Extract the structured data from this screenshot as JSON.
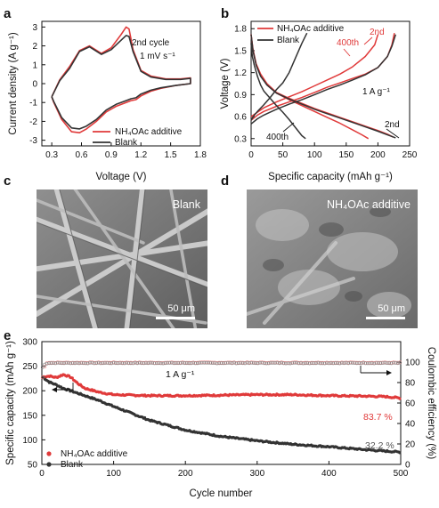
{
  "panels": {
    "a": {
      "label": "a",
      "chart_data": {
        "type": "line",
        "xlabel": "Voltage (V)",
        "ylabel": "Current density (A g⁻¹)",
        "xlim": [
          0.2,
          1.8
        ],
        "ylim": [
          -3.3,
          3.3
        ],
        "xticks": [
          0.3,
          0.6,
          0.9,
          1.2,
          1.5,
          1.8
        ],
        "yticks": [
          -3,
          -2,
          -1,
          0,
          1,
          2,
          3
        ],
        "annotation": [
          "2nd cycle",
          "1 mV s⁻¹"
        ],
        "legend": [
          "NH₄OAc additive",
          "Blank"
        ],
        "series": [
          {
            "name": "NH₄OAc additive",
            "color": "#e03a3a",
            "x": [
              0.3,
              0.38,
              0.48,
              0.58,
              0.68,
              0.8,
              0.9,
              1.0,
              1.05,
              1.08,
              1.12,
              1.2,
              1.3,
              1.45,
              1.6,
              1.7,
              1.7,
              1.55,
              1.4,
              1.3,
              1.2,
              1.15,
              1.1,
              1.05,
              0.95,
              0.85,
              0.75,
              0.65,
              0.58,
              0.5,
              0.4,
              0.32,
              0.3
            ],
            "y": [
              -0.7,
              0.2,
              0.9,
              1.75,
              2.0,
              1.6,
              1.9,
              2.6,
              3.0,
              2.9,
              1.8,
              0.7,
              0.4,
              0.25,
              0.25,
              0.3,
              0.0,
              -0.1,
              -0.25,
              -0.4,
              -0.65,
              -0.85,
              -0.9,
              -1.0,
              -1.2,
              -1.5,
              -2.0,
              -2.4,
              -2.6,
              -2.55,
              -1.9,
              -1.0,
              -0.7
            ]
          },
          {
            "name": "Blank",
            "color": "#333333",
            "x": [
              0.3,
              0.38,
              0.48,
              0.58,
              0.68,
              0.8,
              0.9,
              1.0,
              1.05,
              1.08,
              1.12,
              1.2,
              1.3,
              1.45,
              1.6,
              1.7,
              1.7,
              1.55,
              1.4,
              1.3,
              1.2,
              1.15,
              1.1,
              1.05,
              0.95,
              0.85,
              0.75,
              0.65,
              0.58,
              0.5,
              0.4,
              0.32,
              0.3
            ],
            "y": [
              -0.7,
              0.15,
              0.8,
              1.7,
              1.95,
              1.55,
              1.8,
              2.3,
              2.55,
              2.5,
              1.7,
              0.65,
              0.35,
              0.22,
              0.22,
              0.28,
              0.0,
              -0.1,
              -0.22,
              -0.35,
              -0.55,
              -0.75,
              -0.8,
              -0.9,
              -1.1,
              -1.4,
              -1.9,
              -2.25,
              -2.4,
              -2.35,
              -1.8,
              -0.95,
              -0.7
            ]
          }
        ]
      }
    },
    "b": {
      "label": "b",
      "chart_data": {
        "type": "line",
        "xlabel": "Specific capacity (mAh g⁻¹)",
        "ylabel": "Voltage (V)",
        "xlim": [
          0,
          250
        ],
        "ylim": [
          0.2,
          1.9
        ],
        "xticks": [
          0,
          50,
          100,
          150,
          200,
          250
        ],
        "yticks": [
          0.3,
          0.6,
          0.9,
          1.2,
          1.5,
          1.8
        ],
        "legend": [
          "NH₄OAc  additive",
          "Blank"
        ],
        "annotations": [
          "2nd",
          "400th",
          "1 A g⁻¹",
          "2nd",
          "400th"
        ],
        "series": [
          {
            "name": "NH₄OAc  additive",
            "color": "#e03a3a",
            "kind": "charge-2nd",
            "x": [
              0,
              10,
              20,
              40,
              60,
              80,
              100,
              120,
              140,
              160,
              180,
              200,
              215,
              222,
              226
            ],
            "y": [
              0.55,
              0.62,
              0.67,
              0.74,
              0.8,
              0.86,
              0.93,
              1.0,
              1.06,
              1.12,
              1.18,
              1.27,
              1.42,
              1.58,
              1.74
            ]
          },
          {
            "name": "NH₄OAc  additive",
            "color": "#e03a3a",
            "kind": "discharge-2nd",
            "x": [
              0,
              3,
              8,
              15,
              25,
              40,
              60,
              80,
              100,
              120,
              140,
              160,
              180,
              200,
              215,
              224
            ],
            "y": [
              1.72,
              1.52,
              1.32,
              1.18,
              1.05,
              0.93,
              0.85,
              0.78,
              0.71,
              0.65,
              0.59,
              0.53,
              0.47,
              0.41,
              0.36,
              0.32
            ]
          },
          {
            "name": "NH₄OAc  additive",
            "color": "#e03a3a",
            "kind": "charge-400th",
            "x": [
              0,
              10,
              20,
              40,
              60,
              80,
              100,
              120,
              140,
              160,
              180,
              195,
              200
            ],
            "y": [
              0.6,
              0.66,
              0.72,
              0.8,
              0.87,
              0.94,
              1.02,
              1.1,
              1.18,
              1.28,
              1.42,
              1.58,
              1.72
            ]
          },
          {
            "name": "NH₄OAc  additive",
            "color": "#e03a3a",
            "kind": "discharge-400th",
            "x": [
              0,
              3,
              8,
              15,
              25,
              40,
              60,
              80,
              100,
              120,
              140,
              160,
              175,
              185
            ],
            "y": [
              1.72,
              1.5,
              1.3,
              1.16,
              1.03,
              0.92,
              0.83,
              0.75,
              0.67,
              0.59,
              0.51,
              0.42,
              0.35,
              0.3
            ]
          },
          {
            "name": "Blank",
            "color": "#333333",
            "kind": "charge-2nd",
            "x": [
              0,
              10,
              20,
              40,
              60,
              80,
              100,
              120,
              140,
              160,
              180,
              200,
              215,
              222,
              228
            ],
            "y": [
              0.5,
              0.57,
              0.62,
              0.7,
              0.77,
              0.83,
              0.9,
              0.97,
              1.03,
              1.1,
              1.17,
              1.27,
              1.42,
              1.56,
              1.72
            ]
          },
          {
            "name": "Blank",
            "color": "#333333",
            "kind": "discharge-2nd",
            "x": [
              0,
              3,
              8,
              15,
              25,
              40,
              60,
              80,
              100,
              120,
              140,
              160,
              180,
              200,
              215,
              228
            ],
            "y": [
              1.72,
              1.5,
              1.3,
              1.15,
              1.03,
              0.92,
              0.84,
              0.77,
              0.7,
              0.64,
              0.58,
              0.52,
              0.46,
              0.4,
              0.35,
              0.31
            ]
          },
          {
            "name": "Blank",
            "color": "#333333",
            "kind": "charge-400th",
            "x": [
              0,
              5,
              10,
              20,
              30,
              40,
              50,
              60,
              70,
              80,
              88
            ],
            "y": [
              0.55,
              0.62,
              0.67,
              0.76,
              0.86,
              0.97,
              1.06,
              1.2,
              1.4,
              1.6,
              1.74
            ]
          },
          {
            "name": "Blank",
            "color": "#333333",
            "kind": "discharge-400th",
            "x": [
              0,
              2,
              5,
              10,
              15,
              20,
              30,
              40,
              50,
              60,
              70,
              80,
              86
            ],
            "y": [
              1.6,
              1.42,
              1.3,
              1.15,
              1.03,
              0.95,
              0.85,
              0.75,
              0.66,
              0.56,
              0.45,
              0.34,
              0.3
            ]
          }
        ]
      }
    },
    "c": {
      "label": "c",
      "caption": "Blank",
      "scale": "50 μm"
    },
    "d": {
      "label": "d",
      "caption": "NH₄OAc additive",
      "scale": "50 μm"
    },
    "e": {
      "label": "e",
      "chart_data": {
        "type": "scatter",
        "xlabel": "Cycle number",
        "ylabel": "Specific capacity (mAh g⁻¹)",
        "y2label": "Coulombic efficiency (%)",
        "xlim": [
          0,
          500
        ],
        "ylim": [
          50,
          300
        ],
        "y2lim": [
          0,
          120
        ],
        "xticks": [
          0,
          100,
          200,
          300,
          400,
          500
        ],
        "yticks": [
          50,
          100,
          150,
          200,
          250,
          300
        ],
        "y2ticks": [
          0,
          20,
          40,
          60,
          80,
          100
        ],
        "annotations": [
          "1 A g⁻¹",
          "83.7 %",
          "32.2 %"
        ],
        "legend": [
          "NH₄OAc additive",
          "Blank"
        ],
        "series": [
          {
            "name": "NH₄OAc additive",
            "color": "#e03a3a",
            "x": [
              1,
              10,
              20,
              30,
              40,
              50,
              60,
              80,
              100,
              150,
              200,
              250,
              300,
              350,
              400,
              450,
              480,
              500
            ],
            "y": [
              228,
              230,
              227,
              233,
              228,
              215,
              205,
              197,
              192,
              190,
              190,
              191,
              192,
              192,
              190,
              189,
              188,
              185
            ]
          },
          {
            "name": "Blank",
            "color": "#333333",
            "x": [
              1,
              10,
              20,
              30,
              40,
              50,
              60,
              80,
              100,
              150,
              200,
              250,
              300,
              350,
              400,
              450,
              500
            ],
            "y": [
              228,
              218,
              212,
              205,
              200,
              195,
              190,
              180,
              168,
              140,
              120,
              107,
              98,
              91,
              86,
              80,
              75
            ]
          },
          {
            "name": "NH₄OAc additive CE",
            "color": "#e88080",
            "axis": "y2",
            "x": [
              1,
              5,
              10,
              50,
              100,
              200,
              300,
              400,
              500
            ],
            "y": [
              85,
              99,
              99.5,
              99.5,
              99.5,
              99.5,
              99.5,
              99.5,
              99.5
            ]
          },
          {
            "name": "Blank CE",
            "color": "#888888",
            "axis": "y2",
            "x": [
              1,
              5,
              10,
              50,
              100,
              200,
              300,
              400,
              500
            ],
            "y": [
              95,
              98.5,
              99,
              99,
              99,
              99,
              99,
              99,
              99
            ]
          }
        ]
      }
    }
  }
}
